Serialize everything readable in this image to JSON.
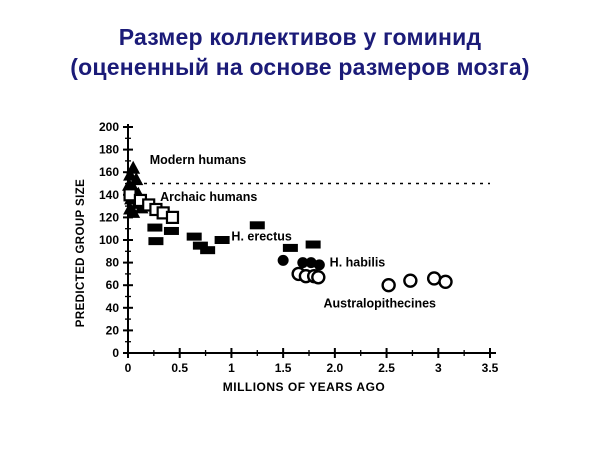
{
  "slide": {
    "title_line1": "Размер коллективов у гоминид",
    "title_line2": "(оцененный на основе размеров мозга)",
    "title_color": "#1b1b78"
  },
  "chart_data": {
    "type": "scatter",
    "title": "",
    "xlabel": "MILLIONS OF YEARS AGO",
    "ylabel": "PREDICTED GROUP SIZE",
    "xlim": [
      0,
      3.5
    ],
    "ylim": [
      0,
      200
    ],
    "x_ticks": [
      {
        "v": 0,
        "label": "0"
      },
      {
        "v": 0.5,
        "label": "0.5"
      },
      {
        "v": 1,
        "label": "1"
      },
      {
        "v": 1.5,
        "label": "1.5"
      },
      {
        "v": 2,
        "label": "2.0"
      },
      {
        "v": 2.5,
        "label": "2.5"
      },
      {
        "v": 3,
        "label": "3"
      },
      {
        "v": 3.5,
        "label": "3.5"
      }
    ],
    "y_ticks": [
      {
        "v": 0,
        "label": "0"
      },
      {
        "v": 20,
        "label": "20"
      },
      {
        "v": 40,
        "label": "40"
      },
      {
        "v": 60,
        "label": "60"
      },
      {
        "v": 80,
        "label": "80"
      },
      {
        "v": 100,
        "label": "100"
      },
      {
        "v": 120,
        "label": "120"
      },
      {
        "v": 140,
        "label": "140"
      },
      {
        "v": 160,
        "label": "160"
      },
      {
        "v": 180,
        "label": "180"
      },
      {
        "v": 200,
        "label": "200"
      }
    ],
    "x_minor_step": 0.25,
    "y_minor_step": 10,
    "grid": false,
    "ink_color": "#000000",
    "reference_line": {
      "y": 150,
      "style": "dashed"
    },
    "series": [
      {
        "name": "Modern humans",
        "marker": "filled-triangle",
        "label_pos": [
          0.21,
          171
        ],
        "points": [
          [
            0.05,
            163
          ],
          [
            0.02,
            157
          ],
          [
            0.08,
            153
          ],
          [
            0.01,
            148
          ],
          [
            0.06,
            144
          ],
          [
            0.1,
            140
          ],
          [
            0.03,
            136
          ],
          [
            0.09,
            132
          ],
          [
            0.13,
            128
          ],
          [
            0.02,
            127
          ],
          [
            0.05,
            124
          ]
        ]
      },
      {
        "name": "Archaic humans",
        "marker": "open-square",
        "label_pos": [
          0.31,
          138
        ],
        "points": [
          [
            0.02,
            140
          ],
          [
            0.12,
            135
          ],
          [
            0.2,
            131
          ],
          [
            0.27,
            127
          ],
          [
            0.34,
            124
          ],
          [
            0.43,
            120
          ]
        ]
      },
      {
        "name": "H. erectus",
        "marker": "filled-dash",
        "label_pos": [
          1.0,
          103
        ],
        "points": [
          [
            0.26,
            111
          ],
          [
            0.42,
            108
          ],
          [
            0.27,
            99
          ],
          [
            0.64,
            103
          ],
          [
            0.91,
            100
          ],
          [
            0.7,
            95
          ],
          [
            0.77,
            91
          ],
          [
            1.25,
            113
          ],
          [
            1.57,
            93
          ],
          [
            1.79,
            96
          ]
        ]
      },
      {
        "name": "H. habilis",
        "marker": "filled-circle",
        "label_pos": [
          1.95,
          80
        ],
        "points": [
          [
            1.5,
            82
          ],
          [
            1.69,
            80
          ],
          [
            1.77,
            80
          ],
          [
            1.85,
            78
          ]
        ]
      },
      {
        "name": "Australopithecines",
        "marker": "open-circle",
        "label_pos": [
          1.89,
          44
        ],
        "points": [
          [
            1.65,
            70
          ],
          [
            1.72,
            68
          ],
          [
            1.8,
            68
          ],
          [
            1.84,
            67
          ],
          [
            2.52,
            60
          ],
          [
            2.73,
            64
          ],
          [
            2.96,
            66
          ],
          [
            3.07,
            63
          ]
        ]
      }
    ]
  }
}
